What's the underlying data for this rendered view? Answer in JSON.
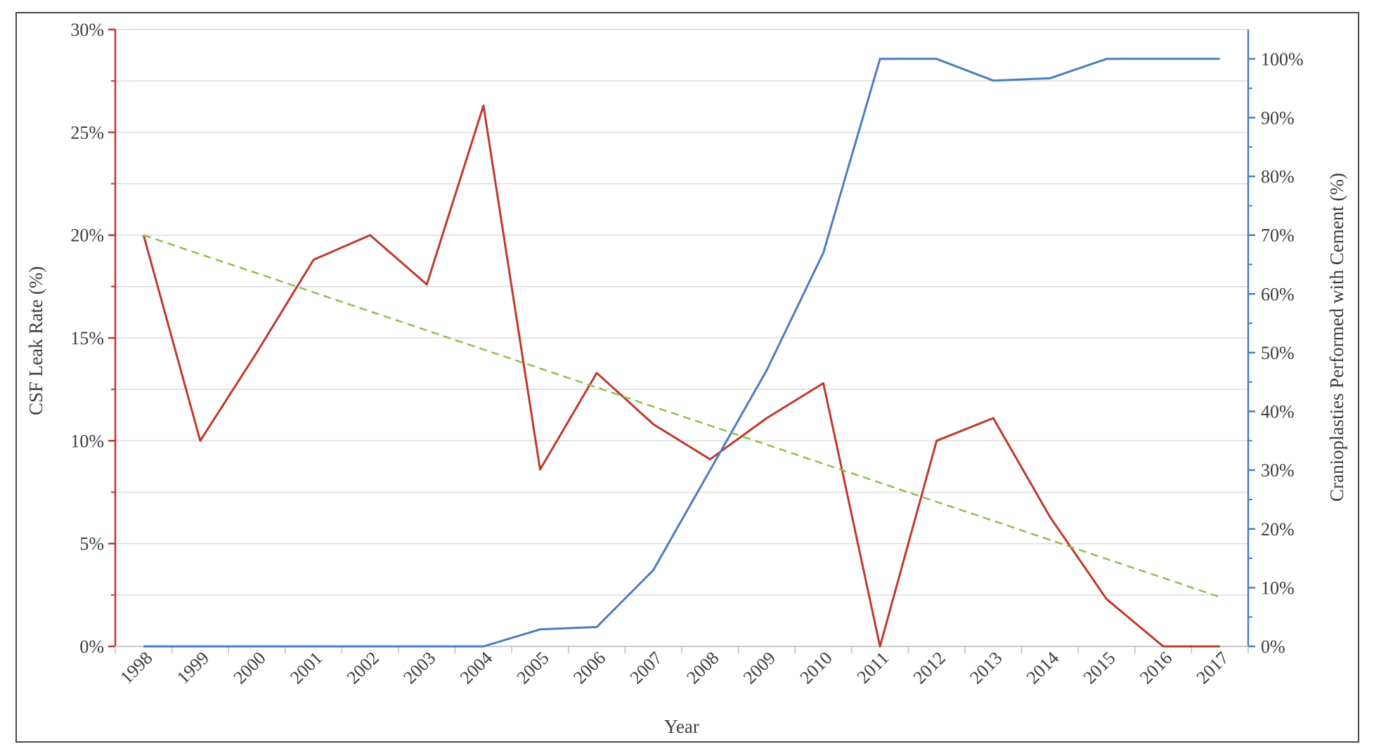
{
  "chart_data": {
    "type": "line",
    "xlabel": "Year",
    "ylabel": "CSF Leak Rate (%)",
    "y2label": "Cranioplasties Performed with Cement (%)",
    "categories": [
      "1998",
      "1999",
      "2000",
      "2001",
      "2002",
      "2003",
      "2004",
      "2005",
      "2006",
      "2007",
      "2008",
      "2009",
      "2010",
      "2011",
      "2012",
      "2013",
      "2014",
      "2015",
      "2016",
      "2017"
    ],
    "ylim": [
      0,
      30
    ],
    "y2lim": [
      0,
      105
    ],
    "yticks": [
      "0%",
      "5%",
      "10%",
      "15%",
      "20%",
      "25%",
      "30%"
    ],
    "y2ticks": [
      "0%",
      "10%",
      "20%",
      "30%",
      "40%",
      "50%",
      "60%",
      "70%",
      "80%",
      "90%",
      "100%"
    ],
    "grid": true,
    "legend": "none",
    "series": [
      {
        "axis": "left",
        "color": "#c0392b",
        "values": [
          20,
          10,
          14.3,
          18.8,
          20,
          17.6,
          26.3,
          8.6,
          13.3,
          10.8,
          9.1,
          11.1,
          12.8,
          0,
          10,
          11.1,
          6.3,
          2.3,
          0,
          0
        ]
      },
      {
        "axis": "right",
        "color": "#4a7ebf",
        "values": [
          0,
          0,
          0,
          0,
          0,
          0,
          0,
          2.9,
          3.3,
          13,
          30,
          47,
          67,
          100,
          100,
          96.3,
          96.7,
          100,
          100,
          100
        ]
      },
      {
        "axis": "left",
        "color": "#8cc04b",
        "style": "dashed",
        "kind": "trend",
        "values": [
          20,
          19.07,
          18.15,
          17.22,
          16.29,
          15.37,
          14.44,
          13.52,
          12.59,
          11.66,
          10.74,
          9.81,
          8.88,
          7.96,
          7.03,
          6.11,
          5.18,
          4.25,
          3.33,
          2.4
        ]
      }
    ]
  }
}
